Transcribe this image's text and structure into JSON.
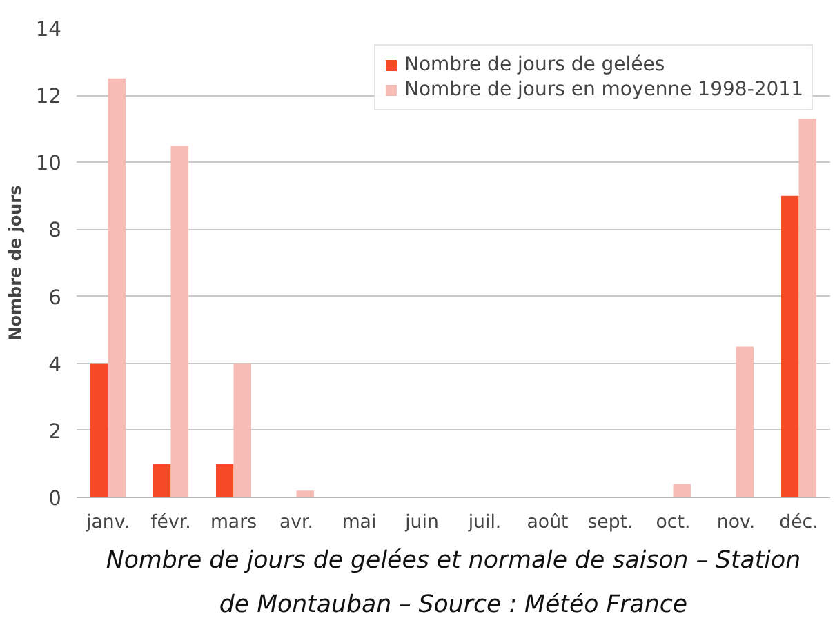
{
  "chart_data": {
    "type": "bar",
    "ylabel": "Nombre de jours",
    "categories": [
      "janv.",
      "févr.",
      "mars",
      "avr.",
      "mai",
      "juin",
      "juil.",
      "août",
      "sept.",
      "oct.",
      "nov.",
      "déc."
    ],
    "series": [
      {
        "name": "Nombre de jours de gelées",
        "color": "#f54a26",
        "values": [
          4,
          1,
          1,
          0,
          0,
          0,
          0,
          0,
          0,
          0,
          0,
          9
        ]
      },
      {
        "name": "Nombre de jours en moyenne 1998-2011",
        "color": "#f8bcb6",
        "values": [
          12.5,
          10.5,
          4,
          0.2,
          0,
          0,
          0,
          0,
          0,
          0.4,
          4.5,
          11.3
        ]
      }
    ],
    "ylim": [
      0,
      14
    ],
    "yticks": [
      0,
      2,
      4,
      6,
      8,
      10,
      12,
      14
    ],
    "grid": "y",
    "legend": "top right",
    "annotations": [
      "Nombre de jours de gelées et normale de saison – Station",
      "de Montauban – Source : Météo France"
    ]
  }
}
